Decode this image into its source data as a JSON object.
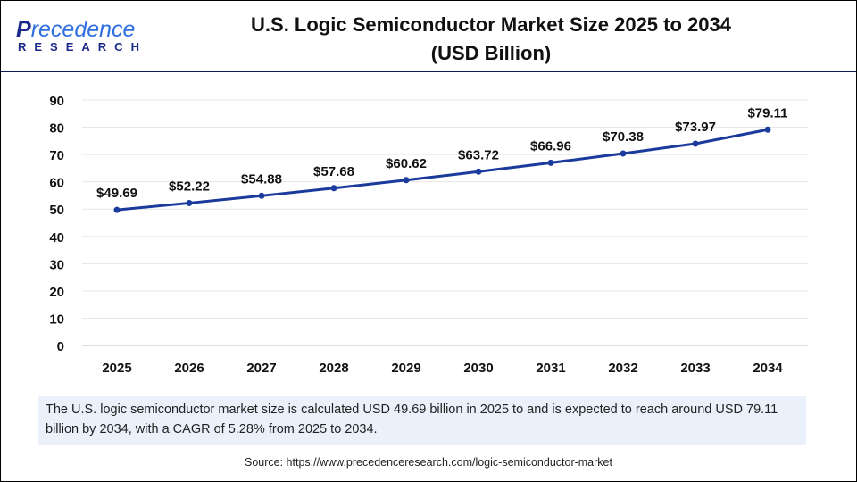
{
  "logo": {
    "main_a": "P",
    "main_b": "rece",
    "main_c": "dence",
    "sub": "RESEARCH"
  },
  "title_line1": "U.S. Logic Semiconductor Market Size 2025 to 2034",
  "title_line2": "(USD Billion)",
  "caption": "The U.S. logic semiconductor market size is calculated USD 49.69 billion in 2025 to and is expected to reach around USD 79.11 billion by 2034, with a CAGR of 5.28% from 2025 to 2034.",
  "source": "Source: https://www.precedenceresearch.com/logic-semiconductor-market",
  "colors": {
    "line": "#1a3a9c",
    "header_rule": "#0d1650",
    "caption_bg": "#eaf1fb"
  },
  "chart_data": {
    "type": "line",
    "title": "U.S. Logic Semiconductor Market Size 2025 to 2034 (USD Billion)",
    "categories": [
      "2025",
      "2026",
      "2027",
      "2028",
      "2029",
      "2030",
      "2031",
      "2032",
      "2033",
      "2034"
    ],
    "values": [
      49.69,
      52.22,
      54.88,
      57.68,
      60.62,
      63.72,
      66.96,
      70.38,
      73.97,
      79.11
    ],
    "data_labels": [
      "$49.69",
      "$52.22",
      "$54.88",
      "$57.68",
      "$60.62",
      "$63.72",
      "$66.96",
      "$70.38",
      "$73.97",
      "$79.11"
    ],
    "yticks": [
      0,
      10,
      20,
      30,
      40,
      50,
      60,
      70,
      80,
      90
    ],
    "ylim": [
      0,
      90
    ],
    "grid": true,
    "legend": "none"
  }
}
